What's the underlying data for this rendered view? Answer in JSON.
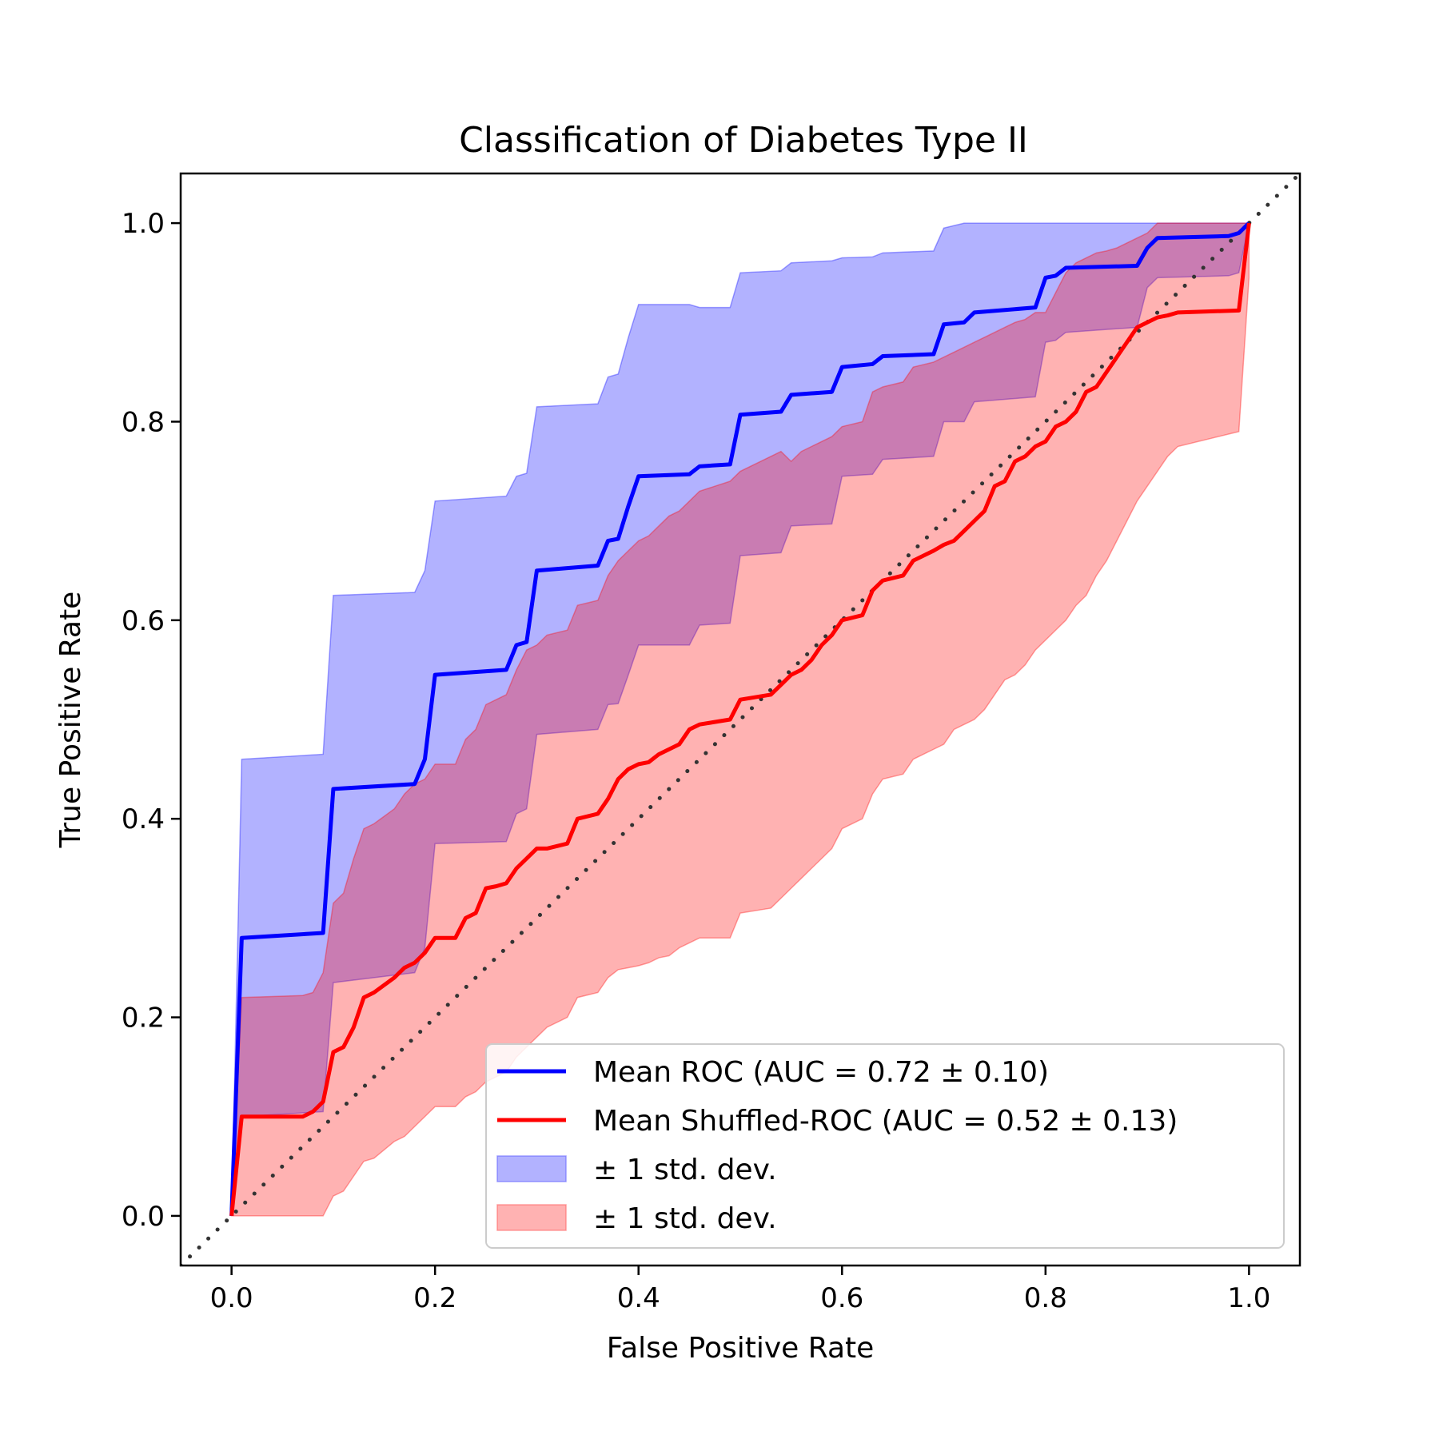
{
  "chart_data": {
    "type": "line",
    "title": "Classification of Diabetes Type II",
    "xlabel": "False Positive Rate",
    "ylabel": "True Positive Rate",
    "xlim": [
      -0.05,
      1.05
    ],
    "ylim": [
      -0.05,
      1.05
    ],
    "xticks": [
      "0.0",
      "0.2",
      "0.4",
      "0.6",
      "0.8",
      "1.0"
    ],
    "yticks": [
      "0.0",
      "0.2",
      "0.4",
      "0.6",
      "0.8",
      "1.0"
    ],
    "grid": false,
    "legend_position": "lower-right",
    "legend": [
      {
        "label": "Mean ROC (AUC = 0.72 ± 0.10)",
        "kind": "line",
        "color": "#0000ff"
      },
      {
        "label": "Mean Shuffled-ROC (AUC = 0.52 ± 0.13)",
        "kind": "line",
        "color": "#ff0000"
      },
      {
        "label": "± 1 std. dev.",
        "kind": "patch",
        "color": "#6666ff"
      },
      {
        "label": "± 1 std. dev.",
        "kind": "patch",
        "color": "#ff6666"
      }
    ],
    "chance_line": {
      "x": [
        -0.05,
        1.05
      ],
      "y": [
        -0.05,
        1.05
      ],
      "color": "#333333",
      "style": "dotted"
    },
    "series": [
      {
        "name": "Mean ROC (AUC = 0.72 ± 0.10)",
        "color": "#0000ff",
        "x": [
          0.0,
          0.01,
          0.09,
          0.1,
          0.18,
          0.19,
          0.2,
          0.27,
          0.28,
          0.29,
          0.3,
          0.36,
          0.37,
          0.38,
          0.39,
          0.4,
          0.45,
          0.46,
          0.49,
          0.5,
          0.54,
          0.55,
          0.59,
          0.6,
          0.63,
          0.64,
          0.69,
          0.7,
          0.72,
          0.73,
          0.79,
          0.8,
          0.81,
          0.82,
          0.89,
          0.9,
          0.91,
          0.98,
          0.99,
          1.0
        ],
        "y": [
          0.0,
          0.28,
          0.285,
          0.43,
          0.435,
          0.46,
          0.545,
          0.55,
          0.575,
          0.578,
          0.65,
          0.655,
          0.68,
          0.682,
          0.715,
          0.745,
          0.747,
          0.755,
          0.757,
          0.807,
          0.81,
          0.827,
          0.83,
          0.855,
          0.858,
          0.866,
          0.868,
          0.898,
          0.9,
          0.91,
          0.915,
          0.945,
          0.947,
          0.955,
          0.957,
          0.975,
          0.985,
          0.987,
          0.99,
          1.0
        ]
      },
      {
        "name": "Mean Shuffled-ROC (AUC = 0.52 ± 0.13)",
        "color": "#ff0000",
        "x": [
          0.0,
          0.01,
          0.07,
          0.08,
          0.09,
          0.1,
          0.11,
          0.12,
          0.13,
          0.14,
          0.16,
          0.17,
          0.18,
          0.19,
          0.2,
          0.22,
          0.23,
          0.24,
          0.25,
          0.26,
          0.27,
          0.28,
          0.29,
          0.3,
          0.31,
          0.33,
          0.34,
          0.36,
          0.37,
          0.38,
          0.39,
          0.4,
          0.41,
          0.42,
          0.43,
          0.44,
          0.45,
          0.46,
          0.49,
          0.5,
          0.53,
          0.54,
          0.55,
          0.56,
          0.57,
          0.58,
          0.59,
          0.6,
          0.62,
          0.63,
          0.64,
          0.66,
          0.67,
          0.69,
          0.7,
          0.71,
          0.72,
          0.73,
          0.74,
          0.75,
          0.76,
          0.77,
          0.78,
          0.79,
          0.8,
          0.81,
          0.82,
          0.83,
          0.84,
          0.85,
          0.86,
          0.87,
          0.88,
          0.89,
          0.9,
          0.91,
          0.92,
          0.93,
          0.99,
          1.0
        ],
        "y": [
          0.0,
          0.1,
          0.1,
          0.105,
          0.115,
          0.165,
          0.17,
          0.19,
          0.22,
          0.225,
          0.24,
          0.25,
          0.255,
          0.265,
          0.28,
          0.28,
          0.3,
          0.305,
          0.33,
          0.332,
          0.335,
          0.35,
          0.36,
          0.37,
          0.37,
          0.375,
          0.4,
          0.405,
          0.42,
          0.44,
          0.45,
          0.455,
          0.457,
          0.465,
          0.47,
          0.475,
          0.49,
          0.495,
          0.5,
          0.52,
          0.525,
          0.535,
          0.545,
          0.55,
          0.56,
          0.575,
          0.585,
          0.6,
          0.605,
          0.63,
          0.64,
          0.645,
          0.66,
          0.67,
          0.676,
          0.68,
          0.69,
          0.7,
          0.71,
          0.735,
          0.74,
          0.76,
          0.765,
          0.775,
          0.78,
          0.795,
          0.8,
          0.81,
          0.83,
          0.835,
          0.85,
          0.865,
          0.88,
          0.895,
          0.9,
          0.905,
          0.907,
          0.91,
          0.912,
          1.0
        ]
      }
    ],
    "bands": [
      {
        "name": "± 1 std. dev.",
        "color": "#0000ff",
        "opacity": 0.3,
        "x": [
          0.0,
          0.01,
          0.09,
          0.1,
          0.18,
          0.19,
          0.2,
          0.27,
          0.28,
          0.29,
          0.3,
          0.36,
          0.37,
          0.38,
          0.39,
          0.4,
          0.45,
          0.46,
          0.49,
          0.5,
          0.54,
          0.55,
          0.59,
          0.6,
          0.63,
          0.64,
          0.69,
          0.7,
          0.72,
          0.73,
          0.79,
          0.8,
          0.81,
          0.82,
          0.89,
          0.9,
          0.91,
          0.98,
          0.99,
          1.0
        ],
        "upper": [
          0.0,
          0.46,
          0.465,
          0.625,
          0.628,
          0.65,
          0.72,
          0.725,
          0.745,
          0.748,
          0.815,
          0.818,
          0.845,
          0.848,
          0.885,
          0.918,
          0.918,
          0.915,
          0.915,
          0.95,
          0.952,
          0.96,
          0.962,
          0.965,
          0.966,
          0.97,
          0.972,
          0.995,
          1.0,
          1.0,
          1.0,
          1.0,
          1.0,
          1.0,
          1.0,
          1.0,
          1.0,
          1.0,
          1.0,
          1.0
        ],
        "lower": [
          0.0,
          0.1,
          0.105,
          0.235,
          0.245,
          0.27,
          0.375,
          0.377,
          0.405,
          0.41,
          0.485,
          0.49,
          0.515,
          0.516,
          0.545,
          0.575,
          0.575,
          0.595,
          0.597,
          0.665,
          0.668,
          0.695,
          0.697,
          0.745,
          0.747,
          0.762,
          0.765,
          0.8,
          0.8,
          0.82,
          0.825,
          0.88,
          0.882,
          0.89,
          0.895,
          0.935,
          0.945,
          0.947,
          0.95,
          1.0
        ]
      },
      {
        "name": "± 1 std. dev.",
        "color": "#ff0000",
        "opacity": 0.3,
        "x": [
          0.0,
          0.01,
          0.07,
          0.08,
          0.09,
          0.1,
          0.11,
          0.12,
          0.13,
          0.14,
          0.16,
          0.17,
          0.18,
          0.19,
          0.2,
          0.22,
          0.23,
          0.24,
          0.25,
          0.26,
          0.27,
          0.28,
          0.29,
          0.3,
          0.31,
          0.33,
          0.34,
          0.36,
          0.37,
          0.38,
          0.39,
          0.4,
          0.41,
          0.42,
          0.43,
          0.44,
          0.45,
          0.46,
          0.49,
          0.5,
          0.53,
          0.54,
          0.55,
          0.56,
          0.57,
          0.58,
          0.59,
          0.6,
          0.62,
          0.63,
          0.64,
          0.66,
          0.67,
          0.69,
          0.7,
          0.71,
          0.72,
          0.73,
          0.74,
          0.75,
          0.76,
          0.77,
          0.78,
          0.79,
          0.8,
          0.81,
          0.82,
          0.83,
          0.84,
          0.85,
          0.86,
          0.87,
          0.88,
          0.89,
          0.9,
          0.91,
          0.92,
          0.93,
          0.99,
          1.0
        ],
        "upper": [
          0.0,
          0.22,
          0.222,
          0.225,
          0.245,
          0.315,
          0.325,
          0.36,
          0.39,
          0.395,
          0.41,
          0.425,
          0.435,
          0.44,
          0.455,
          0.455,
          0.48,
          0.49,
          0.515,
          0.52,
          0.525,
          0.55,
          0.57,
          0.575,
          0.585,
          0.59,
          0.615,
          0.62,
          0.645,
          0.66,
          0.67,
          0.68,
          0.685,
          0.695,
          0.705,
          0.71,
          0.72,
          0.73,
          0.74,
          0.75,
          0.765,
          0.77,
          0.76,
          0.77,
          0.775,
          0.78,
          0.785,
          0.795,
          0.8,
          0.83,
          0.835,
          0.84,
          0.855,
          0.86,
          0.865,
          0.87,
          0.875,
          0.88,
          0.885,
          0.89,
          0.895,
          0.9,
          0.903,
          0.91,
          0.91,
          0.93,
          0.95,
          0.96,
          0.965,
          0.97,
          0.972,
          0.975,
          0.98,
          0.985,
          0.99,
          1.0,
          1.0,
          1.0,
          1.0,
          1.0
        ],
        "lower": [
          0.0,
          0.0,
          0.0,
          0.0,
          0.0,
          0.02,
          0.025,
          0.04,
          0.055,
          0.058,
          0.075,
          0.08,
          0.09,
          0.1,
          0.11,
          0.11,
          0.12,
          0.125,
          0.135,
          0.14,
          0.145,
          0.16,
          0.17,
          0.18,
          0.19,
          0.2,
          0.22,
          0.225,
          0.24,
          0.248,
          0.25,
          0.252,
          0.255,
          0.26,
          0.262,
          0.27,
          0.275,
          0.28,
          0.28,
          0.305,
          0.31,
          0.32,
          0.33,
          0.34,
          0.35,
          0.36,
          0.37,
          0.39,
          0.4,
          0.425,
          0.44,
          0.445,
          0.46,
          0.47,
          0.475,
          0.49,
          0.495,
          0.5,
          0.51,
          0.525,
          0.54,
          0.545,
          0.555,
          0.57,
          0.58,
          0.59,
          0.6,
          0.615,
          0.625,
          0.645,
          0.66,
          0.68,
          0.7,
          0.72,
          0.735,
          0.75,
          0.765,
          0.775,
          0.79,
          0.945
        ]
      }
    ]
  }
}
